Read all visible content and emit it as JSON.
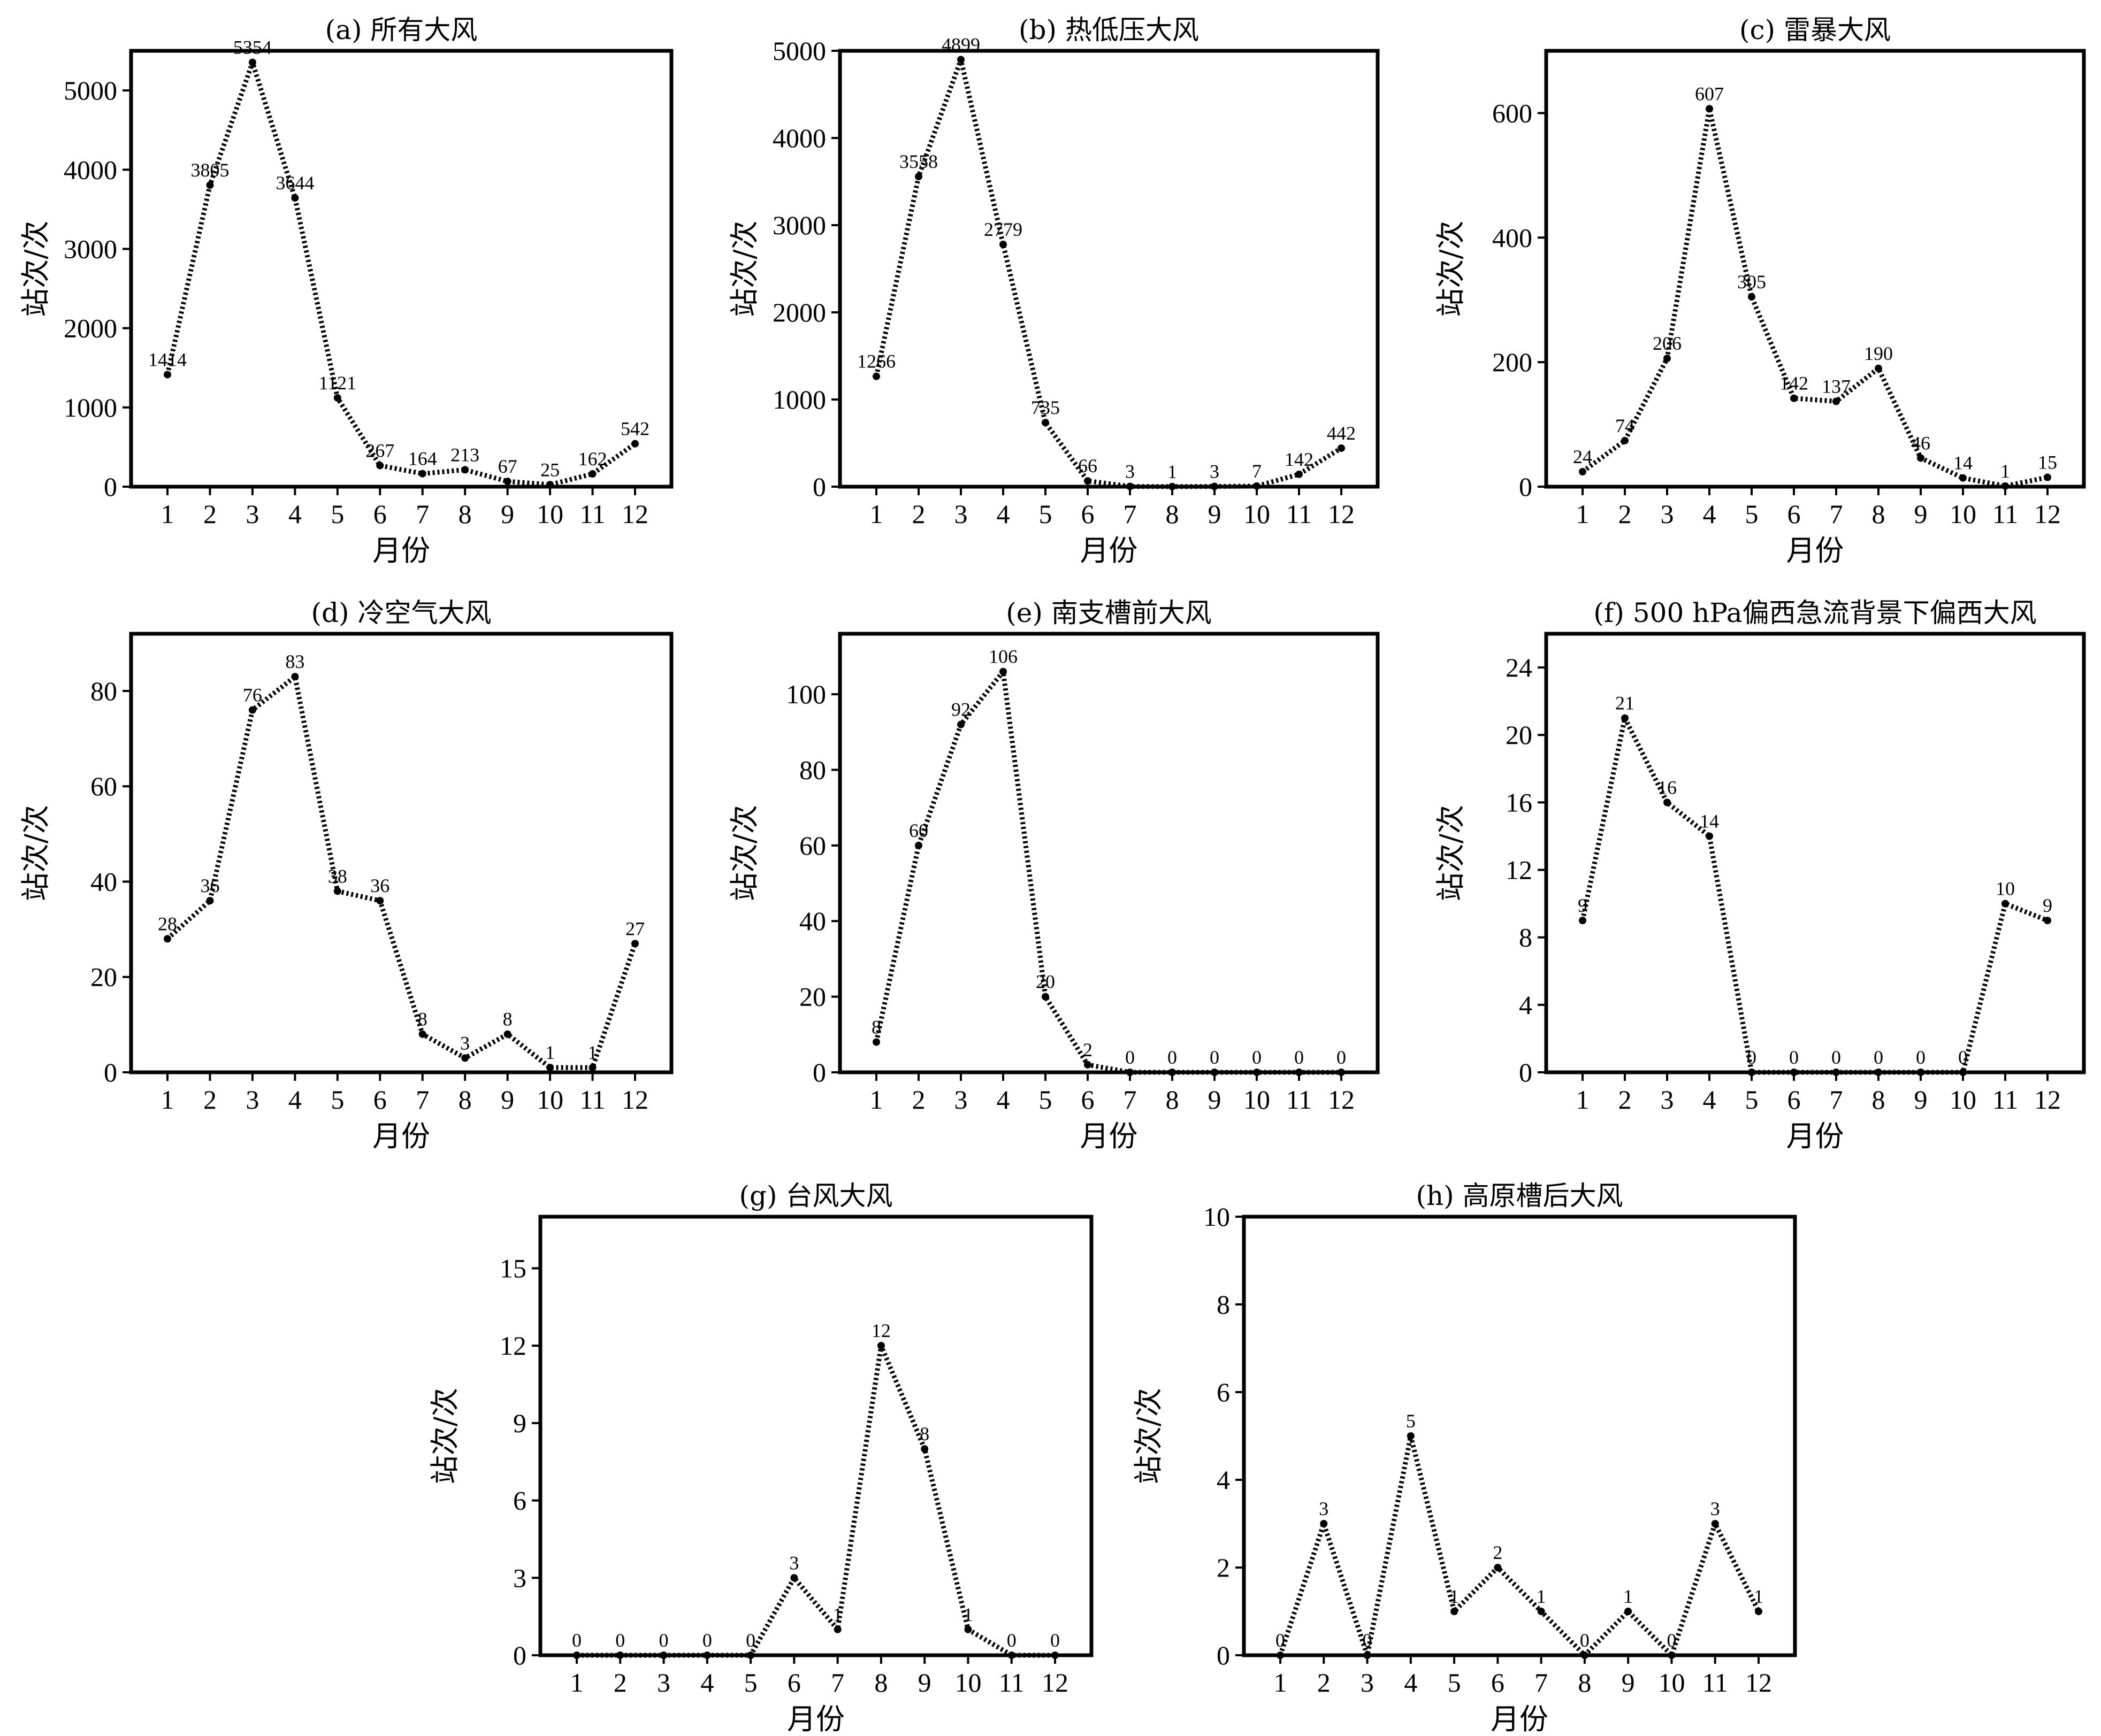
{
  "chart_data": [
    {
      "type": "line",
      "title": "(a) 所有大风",
      "xlabel": "月份",
      "ylabel": "站次/次",
      "x": [
        1,
        2,
        3,
        4,
        5,
        6,
        7,
        8,
        9,
        10,
        11,
        12
      ],
      "values": [
        1414,
        3805,
        5354,
        3644,
        1121,
        267,
        164,
        213,
        67,
        25,
        162,
        542
      ],
      "ylim": [
        0,
        5500
      ],
      "yticks": [
        0,
        1000,
        2000,
        3000,
        4000,
        5000
      ]
    },
    {
      "type": "line",
      "title": "(b) 热低压大风",
      "xlabel": "月份",
      "ylabel": "站次/次",
      "x": [
        1,
        2,
        3,
        4,
        5,
        6,
        7,
        8,
        9,
        10,
        11,
        12
      ],
      "values": [
        1266,
        3558,
        4899,
        2779,
        735,
        66,
        3,
        1,
        3,
        7,
        142,
        442
      ],
      "ylim": [
        0,
        5000
      ],
      "yticks": [
        0,
        1000,
        2000,
        3000,
        4000,
        5000
      ]
    },
    {
      "type": "line",
      "title": "(c) 雷暴大风",
      "xlabel": "月份",
      "ylabel": "站次/次",
      "x": [
        1,
        2,
        3,
        4,
        5,
        6,
        7,
        8,
        9,
        10,
        11,
        12
      ],
      "values": [
        24,
        74,
        206,
        607,
        305,
        142,
        137,
        190,
        46,
        14,
        1,
        15
      ],
      "ylim": [
        0,
        700
      ],
      "yticks": [
        0,
        200,
        400,
        600
      ]
    },
    {
      "type": "line",
      "title": "(d) 冷空气大风",
      "xlabel": "月份",
      "ylabel": "站次/次",
      "x": [
        1,
        2,
        3,
        4,
        5,
        6,
        7,
        8,
        9,
        10,
        11,
        12
      ],
      "values": [
        28,
        36,
        76,
        83,
        38,
        36,
        8,
        3,
        8,
        1,
        1,
        27
      ],
      "ylim": [
        0,
        92
      ],
      "yticks": [
        0,
        20,
        40,
        60,
        80
      ]
    },
    {
      "type": "line",
      "title": "(e) 南支槽前大风",
      "xlabel": "月份",
      "ylabel": "站次/次",
      "x": [
        1,
        2,
        3,
        4,
        5,
        6,
        7,
        8,
        9,
        10,
        11,
        12
      ],
      "values": [
        8,
        60,
        92,
        106,
        20,
        2,
        0,
        0,
        0,
        0,
        0,
        0
      ],
      "ylim": [
        0,
        116
      ],
      "yticks": [
        0,
        20,
        40,
        60,
        80,
        100
      ]
    },
    {
      "type": "line",
      "title": "(f) 500 hPa偏西急流背景下偏西大风",
      "xlabel": "月份",
      "ylabel": "站次/次",
      "x": [
        1,
        2,
        3,
        4,
        5,
        6,
        7,
        8,
        9,
        10,
        11,
        12
      ],
      "values": [
        9,
        21,
        16,
        14,
        0,
        0,
        0,
        0,
        0,
        0,
        10,
        9
      ],
      "ylim": [
        0,
        26
      ],
      "yticks": [
        0,
        4,
        8,
        12,
        16,
        20,
        24
      ]
    },
    {
      "type": "line",
      "title": "(g) 台风大风",
      "xlabel": "月份",
      "ylabel": "站次/次",
      "x": [
        1,
        2,
        3,
        4,
        5,
        6,
        7,
        8,
        9,
        10,
        11,
        12
      ],
      "values": [
        0,
        0,
        0,
        0,
        0,
        3,
        1,
        12,
        8,
        1,
        0,
        0
      ],
      "ylim": [
        0,
        17
      ],
      "yticks": [
        0,
        3,
        6,
        9,
        12,
        15
      ]
    },
    {
      "type": "line",
      "title": "(h) 高原槽后大风",
      "xlabel": "月份",
      "ylabel": "站次/次",
      "x": [
        1,
        2,
        3,
        4,
        5,
        6,
        7,
        8,
        9,
        10,
        11,
        12
      ],
      "values": [
        0,
        3,
        0,
        5,
        1,
        2,
        1,
        0,
        1,
        0,
        3,
        1
      ],
      "ylim": [
        0,
        10
      ],
      "yticks": [
        0,
        2,
        4,
        6,
        8,
        10
      ]
    }
  ]
}
